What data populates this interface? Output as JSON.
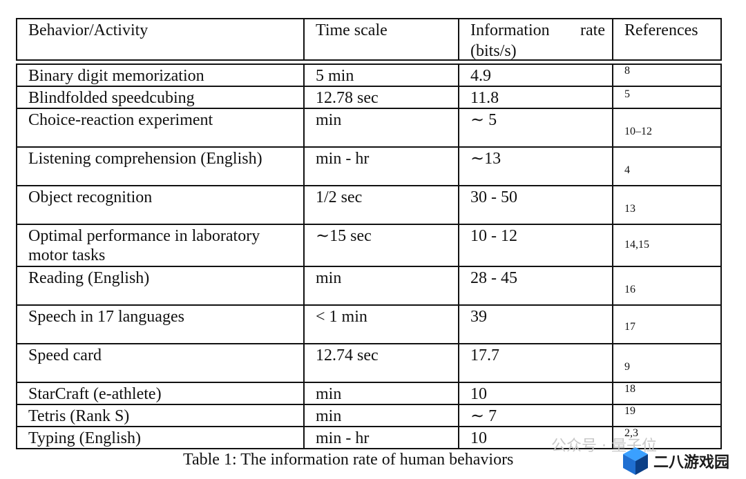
{
  "table": {
    "headers": [
      "Behavior/Activity",
      "Time scale",
      "Information rate (bits/s)",
      "References"
    ],
    "rows": [
      {
        "activity": "Binary digit memorization",
        "time": "5 min",
        "rate": "4.9",
        "ref": "8"
      },
      {
        "activity": "Blindfolded speedcubing",
        "time": "12.78 sec",
        "rate": "11.8",
        "ref": "5"
      },
      {
        "activity": "Choice-reaction experiment",
        "time": "min",
        "rate": "∼ 5",
        "ref": "10–12"
      },
      {
        "activity": "Listening comprehension (English)",
        "time": "min - hr",
        "rate": "∼13",
        "ref": "4"
      },
      {
        "activity": "Object recognition",
        "time": "1/2 sec",
        "rate": "30 - 50",
        "ref": "13"
      },
      {
        "activity": "Optimal performance in laboratory motor tasks",
        "time": "∼15 sec",
        "rate": "10 - 12",
        "ref": "14,15"
      },
      {
        "activity": "Reading (English)",
        "time": "min",
        "rate": "28 - 45",
        "ref": "16"
      },
      {
        "activity": "Speech in 17 languages",
        "time": "< 1 min",
        "rate": "39",
        "ref": "17"
      },
      {
        "activity": "Speed card",
        "time": "12.74 sec",
        "rate": "17.7",
        "ref": "9"
      },
      {
        "activity": "StarCraft (e-athlete)",
        "time": "min",
        "rate": "10",
        "ref": "18"
      },
      {
        "activity": "Tetris (Rank S)",
        "time": "min",
        "rate": "∼ 7",
        "ref": "19"
      },
      {
        "activity": "Typing (English)",
        "time": "min - hr",
        "rate": "10",
        "ref": "2,3"
      }
    ]
  },
  "caption": "Table 1: The information rate of human behaviors",
  "watermark": {
    "left_text": "公众号 · 量子位",
    "site_text": "二八游戏园",
    "logo_colors": [
      "#1f6fd1",
      "#3aa0ff",
      "#0b3f86"
    ]
  }
}
